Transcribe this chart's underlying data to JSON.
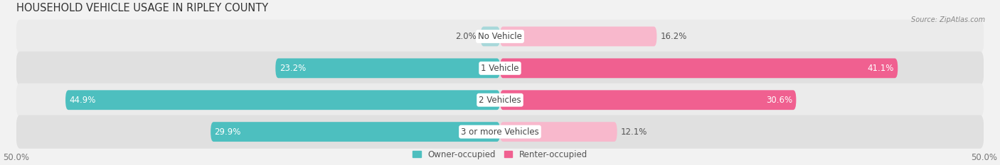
{
  "title": "HOUSEHOLD VEHICLE USAGE IN RIPLEY COUNTY",
  "source": "Source: ZipAtlas.com",
  "categories": [
    "No Vehicle",
    "1 Vehicle",
    "2 Vehicles",
    "3 or more Vehicles"
  ],
  "owner_values": [
    2.0,
    23.2,
    44.9,
    29.9
  ],
  "renter_values": [
    16.2,
    41.1,
    30.6,
    12.1
  ],
  "owner_color": "#4dbfbf",
  "renter_color": "#f06090",
  "owner_color_light": "#a8d8da",
  "renter_color_light": "#f8b8cc",
  "axis_max": 50.0,
  "background_color": "#f2f2f2",
  "row_bg_light": "#ebebeb",
  "row_bg_dark": "#e0e0e0",
  "title_fontsize": 10.5,
  "label_fontsize": 8.5,
  "tick_fontsize": 8.5,
  "legend_fontsize": 8.5
}
